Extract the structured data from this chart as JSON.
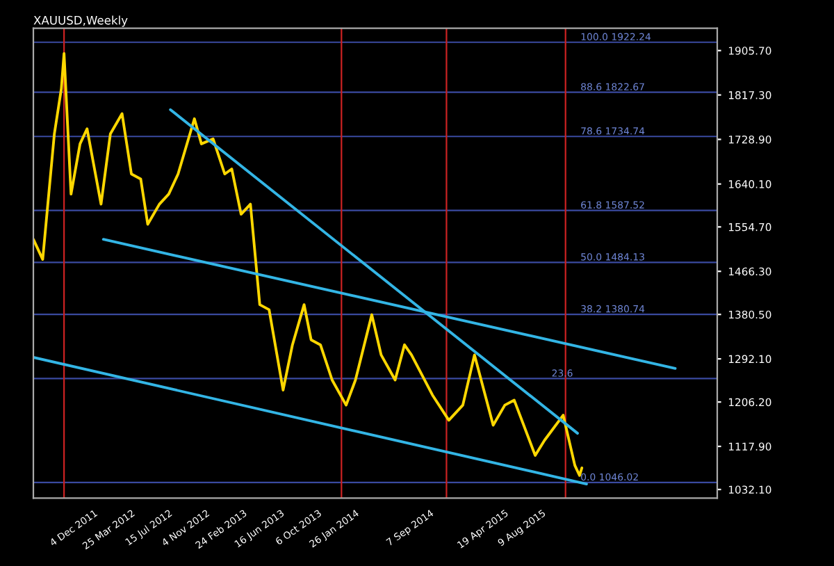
{
  "chart_data": {
    "type": "line",
    "title": "XAUUSD,Weekly",
    "series": [
      {
        "color": "#ffd700",
        "x": [
          "2011-06-05",
          "2011-07-03",
          "2011-08-07",
          "2011-08-28",
          "2011-09-05",
          "2011-09-26",
          "2011-10-23",
          "2011-11-13",
          "2011-12-25",
          "2012-01-22",
          "2012-02-26",
          "2012-03-25",
          "2012-04-22",
          "2012-05-13",
          "2012-06-17",
          "2012-07-15",
          "2012-08-12",
          "2012-09-30",
          "2012-10-21",
          "2012-11-25",
          "2012-12-30",
          "2013-01-20",
          "2013-02-17",
          "2013-03-17",
          "2013-04-14",
          "2013-05-12",
          "2013-06-23",
          "2013-07-21",
          "2013-08-25",
          "2013-09-15",
          "2013-10-13",
          "2013-11-17",
          "2013-12-29",
          "2014-01-26",
          "2014-03-16",
          "2014-04-13",
          "2014-05-25",
          "2014-06-22",
          "2014-07-13",
          "2014-09-14",
          "2014-11-02",
          "2014-12-14",
          "2015-01-18",
          "2015-03-15",
          "2015-04-19",
          "2015-05-17",
          "2015-07-19",
          "2015-08-16",
          "2015-10-11",
          "2015-11-15",
          "2015-11-29",
          "2015-12-06"
        ],
        "values": [
          1530,
          1490,
          1740,
          1830,
          1900,
          1620,
          1720,
          1750,
          1600,
          1740,
          1780,
          1660,
          1650,
          1560,
          1600,
          1620,
          1660,
          1770,
          1720,
          1730,
          1660,
          1670,
          1580,
          1600,
          1400,
          1390,
          1230,
          1320,
          1400,
          1330,
          1320,
          1250,
          1200,
          1250,
          1380,
          1300,
          1250,
          1320,
          1300,
          1220,
          1170,
          1200,
          1300,
          1160,
          1200,
          1210,
          1100,
          1130,
          1180,
          1080,
          1060,
          1075
        ]
      },
      {
        "color": "#33b5e5",
        "x": [
          "2012-07-20",
          "2015-11-23"
        ],
        "values": [
          1788,
          1144
        ]
      },
      {
        "color": "#33b5e5",
        "x": [
          "2012-01-01",
          "2016-09-11"
        ],
        "values": [
          1530,
          1273
        ]
      },
      {
        "color": "#33b5e5",
        "x": [
          "2011-06-05",
          "2015-12-20"
        ],
        "values": [
          1295,
          1043
        ]
      }
    ],
    "xlim": [
      "2011-06-05",
      "2017-01-15"
    ],
    "xticks": [
      {
        "value": "2011-12-04",
        "label": "4 Dec 2011"
      },
      {
        "value": "2012-03-25",
        "label": "25 Mar 2012"
      },
      {
        "value": "2012-07-15",
        "label": "15 Jul 2012"
      },
      {
        "value": "2012-11-04",
        "label": "4 Nov 2012"
      },
      {
        "value": "2013-02-24",
        "label": "24 Feb 2013"
      },
      {
        "value": "2013-06-16",
        "label": "16 Jun 2013"
      },
      {
        "value": "2013-10-06",
        "label": "6 Oct 2013"
      },
      {
        "value": "2014-01-26",
        "label": "26 Jan 2014"
      },
      {
        "value": "2014-09-07",
        "label": "7 Sep 2014"
      },
      {
        "value": "2015-04-19",
        "label": "19 Apr 2015"
      },
      {
        "value": "2015-08-09",
        "label": "9 Aug 2015"
      }
    ],
    "ylim": [
      1015,
      1950
    ],
    "yticks": [
      {
        "value": 1032.1,
        "label": "1032.10"
      },
      {
        "value": 1117.9,
        "label": "1117.90"
      },
      {
        "value": 1206.2,
        "label": "1206.20"
      },
      {
        "value": 1292.1,
        "label": "1292.10"
      },
      {
        "value": 1380.5,
        "label": "1380.50"
      },
      {
        "value": 1466.3,
        "label": "1466.30"
      },
      {
        "value": 1554.7,
        "label": "1554.70"
      },
      {
        "value": 1640.1,
        "label": "1640.10"
      },
      {
        "value": 1728.9,
        "label": "1728.90"
      },
      {
        "value": 1817.3,
        "label": "1817.30"
      },
      {
        "value": 1905.7,
        "label": "1905.70"
      }
    ],
    "ref_lines": [
      {
        "axis": "y",
        "value": 1922.24,
        "label": "100.0 1922.24",
        "color": "#3a4aa0"
      },
      {
        "axis": "y",
        "value": 1822.67,
        "label": "88.6 1822.67",
        "color": "#3a4aa0"
      },
      {
        "axis": "y",
        "value": 1734.74,
        "label": "78.6 1734.74",
        "color": "#3a4aa0"
      },
      {
        "axis": "y",
        "value": 1587.52,
        "label": "61.8 1587.52",
        "color": "#3a4aa0"
      },
      {
        "axis": "y",
        "value": 1484.13,
        "label": "50.0 1484.13",
        "color": "#3a4aa0"
      },
      {
        "axis": "y",
        "value": 1380.74,
        "label": "38.2 1380.74",
        "color": "#3a4aa0"
      },
      {
        "axis": "y",
        "value": 1252.81,
        "color": "#3a4aa0"
      },
      {
        "axis": "y",
        "value": 1046.02,
        "label": "0.0 1046.02",
        "color": "#3a4aa0"
      },
      {
        "axis": "x",
        "value": "2011-09-05",
        "color": "#cc2222"
      },
      {
        "axis": "x",
        "value": "2013-12-15",
        "color": "#cc2222"
      },
      {
        "axis": "x",
        "value": "2014-10-26",
        "color": "#cc2222"
      },
      {
        "axis": "x",
        "value": "2015-10-18",
        "color": "#cc2222"
      }
    ],
    "annotations": [
      {
        "text": "23.6",
        "x": "2015-09-06",
        "y": 1252.81
      }
    ],
    "grid": false
  }
}
